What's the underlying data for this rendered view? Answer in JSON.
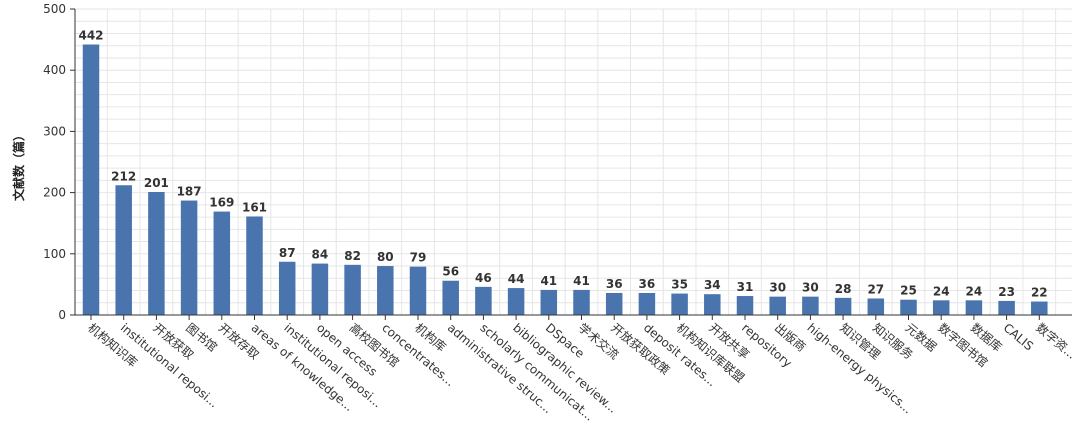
{
  "chart_data": {
    "type": "bar",
    "title": "",
    "xlabel": "",
    "ylabel": "文献数（篇）",
    "ylim": [
      0,
      500
    ],
    "yticks": [
      0,
      100,
      200,
      300,
      400,
      500
    ],
    "grid": true,
    "bar_color": "#4a74ad",
    "categories": [
      "机构知识库",
      "institutional reposi...",
      "开放获取",
      "图书馆",
      "开放存取",
      "areas of knowledge...",
      "institutional reposi...",
      "open access",
      "高校图书馆",
      "concentrates...",
      "机构库",
      "administrative struc...",
      "scholarly communicat...",
      "bibliographic review...",
      "DSpace",
      "学术交流",
      "开放获取政策",
      "deposit rates...",
      "机构知识库联盟",
      "开放共享",
      "repository",
      "出版商",
      "high-energy physics...",
      "知识管理",
      "知识服务",
      "元数据",
      "数字图书馆",
      "数据库",
      "CALIS",
      "数字资..."
    ],
    "values": [
      442,
      212,
      201,
      187,
      169,
      161,
      87,
      84,
      82,
      80,
      79,
      56,
      46,
      44,
      41,
      41,
      36,
      36,
      35,
      34,
      31,
      30,
      30,
      28,
      27,
      25,
      24,
      24,
      23,
      22
    ]
  }
}
